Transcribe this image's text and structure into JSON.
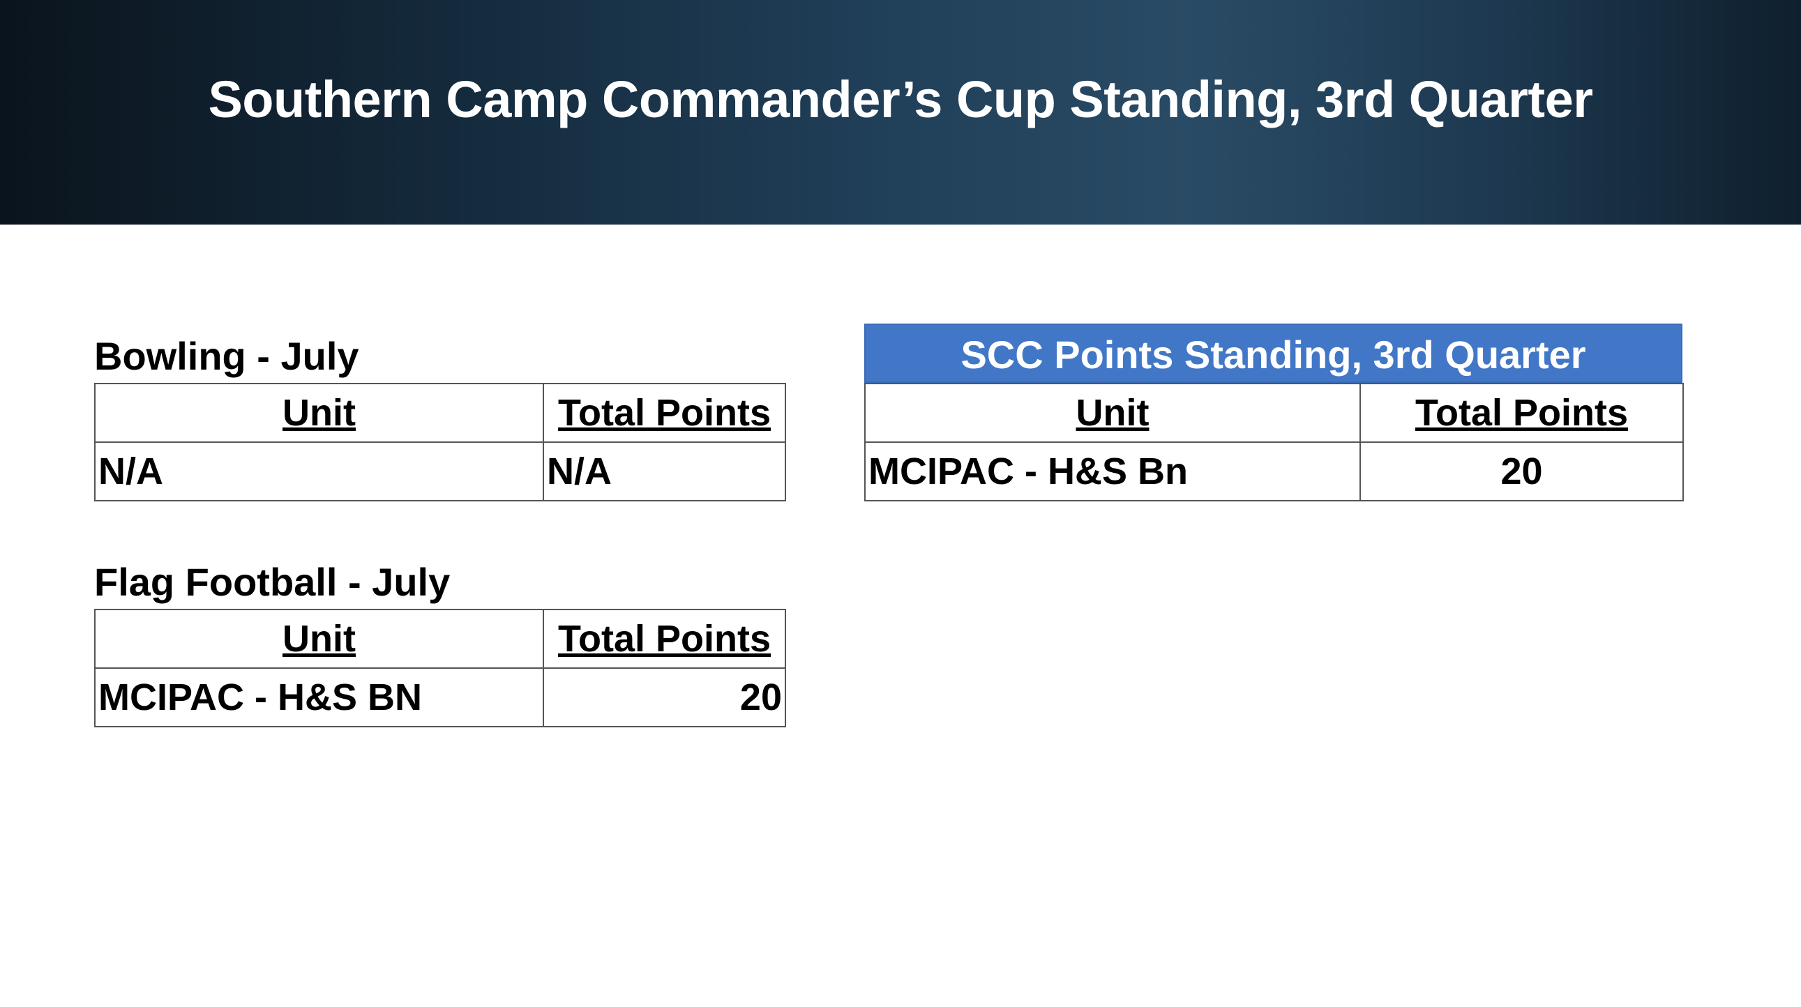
{
  "header": {
    "title": "Southern Camp Commander’s Cup Standing, 3rd Quarter"
  },
  "tables": [
    {
      "title": "Bowling - July",
      "columns": [
        "Unit",
        "Total Points"
      ],
      "rows": [
        [
          "N/A",
          "N/A"
        ]
      ]
    },
    {
      "title": "Flag Football - July",
      "columns": [
        "Unit",
        "Total Points"
      ],
      "rows": [
        [
          "MCIPAC - H&S BN",
          20
        ]
      ]
    },
    {
      "title": "SCC Points Standing, 3rd Quarter",
      "columns": [
        "Unit",
        "Total Points"
      ],
      "rows": [
        [
          "MCIPAC - H&S Bn",
          20
        ]
      ]
    }
  ]
}
